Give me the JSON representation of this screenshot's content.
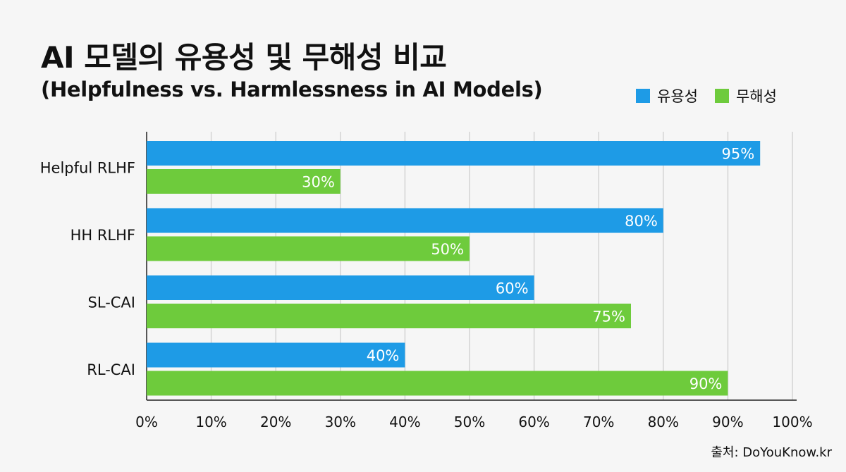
{
  "chart_data": {
    "type": "bar",
    "orientation": "horizontal",
    "title": "AI 모델의 유용성 및 무해성 비교",
    "subtitle": "(Helpfulness vs. Harmlessness in AI Models)",
    "categories": [
      "Helpful RLHF",
      "HH RLHF",
      "SL-CAI",
      "RL-CAI"
    ],
    "series": [
      {
        "name": "유용성",
        "color": "#1e9be6",
        "values": [
          95,
          80,
          60,
          40
        ]
      },
      {
        "name": "무해성",
        "color": "#6ecb3c",
        "values": [
          30,
          50,
          75,
          90
        ]
      }
    ],
    "xlim": [
      0,
      100
    ],
    "xticks": [
      0,
      10,
      20,
      30,
      40,
      50,
      60,
      70,
      80,
      90,
      100
    ],
    "tick_suffix": "%",
    "value_suffix": "%",
    "grid": "vertical",
    "legend": "top-right",
    "xlabel": "",
    "ylabel": ""
  },
  "source": "출처: DoYouKnow.kr"
}
